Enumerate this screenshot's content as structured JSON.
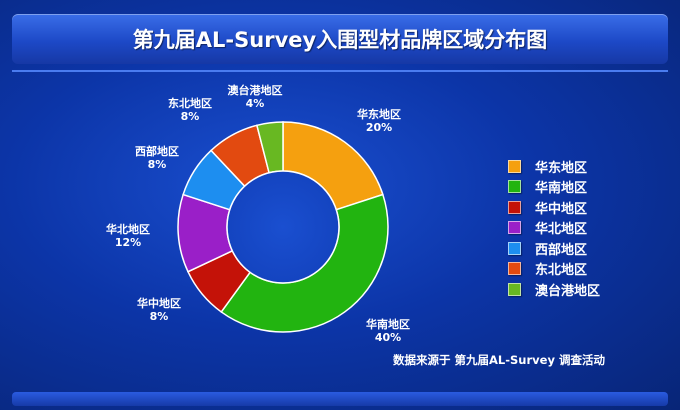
{
  "chart_data": {
    "type": "pie",
    "title": "第九届AL-Survey入围型材品牌区域分布图",
    "categories": [
      "华东地区",
      "华南地区",
      "华中地区",
      "华北地区",
      "西部地区",
      "东北地区",
      "澳台港地区"
    ],
    "values": [
      20,
      40,
      8,
      12,
      8,
      8,
      4
    ],
    "value_labels": [
      "20%",
      "40%",
      "8%",
      "12%",
      "8%",
      "8%",
      "4%"
    ],
    "colors": [
      "#f5a00f",
      "#22b410",
      "#c41208",
      "#9a1fc8",
      "#1d8ef0",
      "#e24a10",
      "#68b822"
    ],
    "legend": "right",
    "donut": true
  },
  "source": "数据来源于 第九届AL-Survey 调查活动"
}
